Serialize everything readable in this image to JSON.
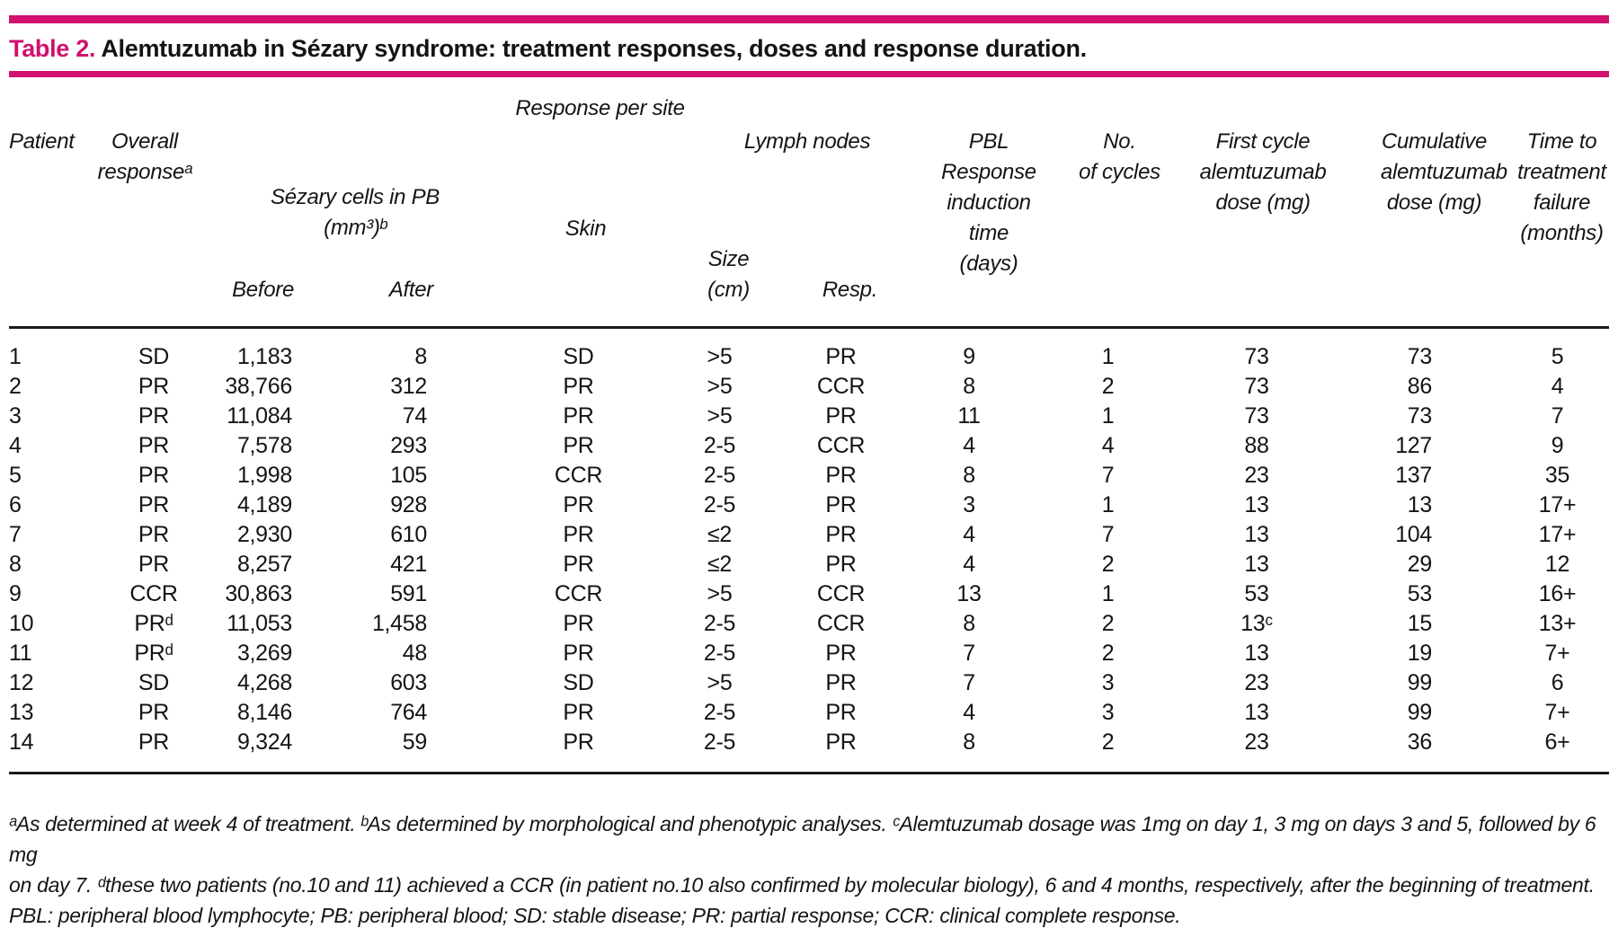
{
  "accent_color": "#d2106e",
  "title": {
    "label": "Table 2.",
    "text": "Alemtuzumab in Sézary syndrome: treatment responses, doses and response duration."
  },
  "table": {
    "headers": {
      "response_per_site_group": "Response per site",
      "patient": "Patient",
      "overall_response": "Overall\nresponseᵃ",
      "sezary_cells_group": "Sézary cells in PB\n(mm³)ᵇ",
      "before": "Before",
      "after": "After",
      "skin": "Skin",
      "lymph_nodes_group": "Lymph nodes",
      "size": "Size\n(cm)",
      "resp": "Resp.",
      "pbl_induction": "PBL\nResponse\ninduction\ntime (days)",
      "cycles": "No.\nof cycles",
      "first_cycle_dose": "First cycle\nalemtuzumab\ndose (mg)",
      "cumulative_dose": "Cumulative\nalemtuzumab\ndose (mg)",
      "time_to_failure": "Time to\ntreatment\nfailure\n(months)"
    },
    "columns": [
      "Patient",
      "Overall response",
      "Sézary cells in PB before",
      "Sézary cells in PB after",
      "Skin response",
      "Lymph nodes size (cm)",
      "Lymph nodes resp.",
      "PBL response induction time (days)",
      "No. of cycles",
      "First cycle alemtuzumab dose (mg)",
      "Cumulative alemtuzumab dose (mg)",
      "Time to treatment failure (months)"
    ],
    "rows": [
      [
        "1",
        "SD",
        "1,183",
        "8",
        "SD",
        ">5",
        "PR",
        "9",
        "1",
        "73",
        "73",
        "5"
      ],
      [
        "2",
        "PR",
        "38,766",
        "312",
        "PR",
        ">5",
        "CCR",
        "8",
        "2",
        "73",
        "86",
        "4"
      ],
      [
        "3",
        "PR",
        "11,084",
        "74",
        "PR",
        ">5",
        "PR",
        "11",
        "1",
        "73",
        "73",
        "7"
      ],
      [
        "4",
        "PR",
        "7,578",
        "293",
        "PR",
        "2-5",
        "CCR",
        "4",
        "4",
        "88",
        "127",
        "9"
      ],
      [
        "5",
        "PR",
        "1,998",
        "105",
        "CCR",
        "2-5",
        "PR",
        "8",
        "7",
        "23",
        "137",
        "35"
      ],
      [
        "6",
        "PR",
        "4,189",
        "928",
        "PR",
        "2-5",
        "PR",
        "3",
        "1",
        "13",
        "13",
        "17+"
      ],
      [
        "7",
        "PR",
        "2,930",
        "610",
        "PR",
        "≤2",
        "PR",
        "4",
        "7",
        "13",
        "104",
        "17+"
      ],
      [
        "8",
        "PR",
        "8,257",
        "421",
        "PR",
        "≤2",
        "PR",
        "4",
        "2",
        "13",
        "29",
        "12"
      ],
      [
        "9",
        "CCR",
        "30,863",
        "591",
        "CCR",
        ">5",
        "CCR",
        "13",
        "1",
        "53",
        "53",
        "16+"
      ],
      [
        "10",
        "PRᵈ",
        "11,053",
        "1,458",
        "PR",
        "2-5",
        "CCR",
        "8",
        "2",
        "13ᶜ",
        "15",
        "13+"
      ],
      [
        "11",
        "PRᵈ",
        "3,269",
        "48",
        "PR",
        "2-5",
        "PR",
        "7",
        "2",
        "13",
        "19",
        "7+"
      ],
      [
        "12",
        "SD",
        "4,268",
        "603",
        "SD",
        ">5",
        "PR",
        "7",
        "3",
        "23",
        "99",
        "6"
      ],
      [
        "13",
        "PR",
        "8,146",
        "764",
        "PR",
        "2-5",
        "PR",
        "4",
        "3",
        "13",
        "99",
        "7+"
      ],
      [
        "14",
        "PR",
        "9,324",
        "59",
        "PR",
        "2-5",
        "PR",
        "8",
        "2",
        "23",
        "36",
        "6+"
      ]
    ]
  },
  "footnotes": {
    "lines": [
      "ᵃAs determined at week 4 of treatment. ᵇAs determined by morphological and phenotypic analyses. ᶜAlemtuzumab dosage was 1mg on day 1, 3 mg on days 3 and 5, followed by 6 mg",
      "on day 7. ᵈthese two patients (no.10 and 11) achieved a CCR (in patient no.10 also confirmed by molecular biology), 6 and 4 months, respectively, after the beginning of treatment.",
      "PBL: peripheral blood lymphocyte; PB: peripheral blood; SD: stable disease; PR: partial response; CCR: clinical complete response."
    ]
  }
}
